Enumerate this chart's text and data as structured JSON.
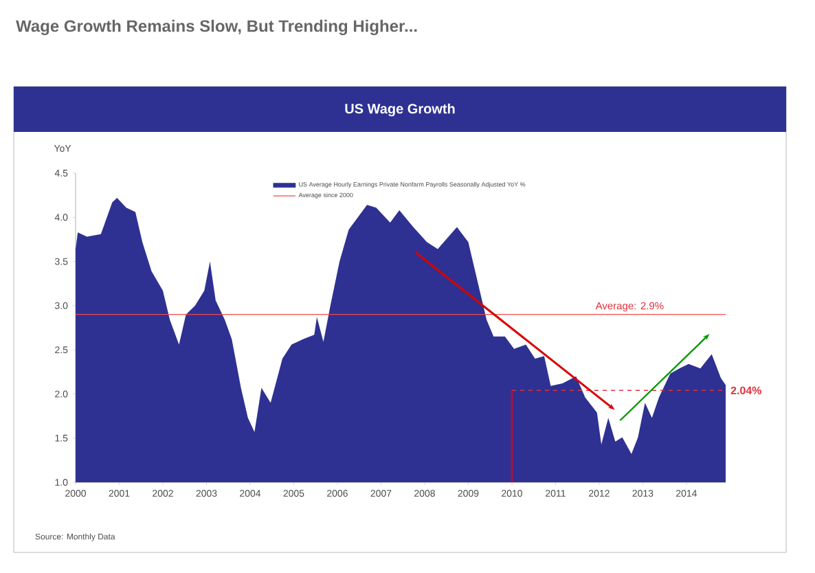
{
  "chart_data": {
    "type": "area",
    "title": "Wage Growth Remains Slow, But Trending Higher...",
    "subtitle": "US Wage Growth",
    "ylabel": "YoY",
    "series": [
      {
        "name": "US Average Hourly Earnings Private Nonfarm Payrolls Seasonally Adjusted YoY %",
        "color": "#2e3192",
        "x": [
          2000.0,
          2000.05,
          2000.26,
          2000.58,
          2000.84,
          2000.95,
          2001.16,
          2001.37,
          2001.53,
          2001.74,
          2002.0,
          2002.16,
          2002.37,
          2002.53,
          2002.74,
          2002.95,
          2003.08,
          2003.21,
          2003.42,
          2003.58,
          2003.79,
          2003.95,
          2004.1,
          2004.26,
          2004.47,
          2004.74,
          2004.95,
          2005.21,
          2005.47,
          2005.53,
          2005.68,
          2005.84,
          2006.05,
          2006.26,
          2006.47,
          2006.68,
          2006.89,
          2007.21,
          2007.42,
          2007.74,
          2008.05,
          2008.3,
          2008.74,
          2009.0,
          2009.21,
          2009.42,
          2009.58,
          2009.84,
          2010.05,
          2010.32,
          2010.53,
          2010.74,
          2010.89,
          2011.16,
          2011.47,
          2011.68,
          2011.95,
          2012.05,
          2012.21,
          2012.37,
          2012.53,
          2012.74,
          2012.89,
          2013.05,
          2013.21,
          2013.37,
          2013.63,
          2013.84,
          2014.05,
          2014.32,
          2014.58,
          2014.79,
          2014.9
        ],
        "values": [
          3.64,
          3.83,
          3.78,
          3.81,
          4.17,
          4.22,
          4.11,
          4.06,
          3.72,
          3.39,
          3.17,
          2.84,
          2.56,
          2.9,
          3.0,
          3.17,
          3.5,
          3.06,
          2.84,
          2.62,
          2.07,
          1.73,
          1.57,
          2.07,
          1.9,
          2.4,
          2.56,
          2.62,
          2.67,
          2.87,
          2.59,
          3.0,
          3.5,
          3.86,
          4.0,
          4.14,
          4.11,
          3.94,
          4.08,
          3.89,
          3.72,
          3.64,
          3.89,
          3.72,
          3.28,
          2.84,
          2.65,
          2.65,
          2.51,
          2.56,
          2.4,
          2.43,
          2.09,
          2.12,
          2.2,
          1.96,
          1.79,
          1.43,
          1.73,
          1.46,
          1.51,
          1.32,
          1.51,
          1.9,
          1.73,
          1.96,
          2.23,
          2.29,
          2.34,
          2.29,
          2.45,
          2.18,
          2.1
        ]
      },
      {
        "name": "Average since 2000",
        "type": "line",
        "color": "#f04a4a",
        "x": [
          2000.0,
          2014.9
        ],
        "values": [
          2.9,
          2.9
        ]
      }
    ],
    "xlim": [
      2000,
      2014.9
    ],
    "xticks": [
      2000,
      2001,
      2002,
      2003,
      2004,
      2005,
      2006,
      2007,
      2008,
      2009,
      2010,
      2011,
      2012,
      2013,
      2014
    ],
    "ylim": [
      1.0,
      4.5
    ],
    "yticks": [
      {
        "value": 1.0,
        "label": "1.0"
      },
      {
        "value": 1.5,
        "label": "1.5"
      },
      {
        "value": 2.0,
        "label": "2.0"
      },
      {
        "value": 2.5,
        "label": "2.5"
      },
      {
        "value": 3.0,
        "label": "3.0"
      },
      {
        "value": 3.5,
        "label": "3.5"
      },
      {
        "value": 4.0,
        "label": "4.0"
      },
      {
        "value": 4.5,
        "label": "4.5"
      }
    ],
    "ref_lines": [
      {
        "axis": "y",
        "value": 2.04,
        "label": "2.04%",
        "color": "#e0303a",
        "line_style": "dashed"
      },
      {
        "axis": "x",
        "value": 2010,
        "color": "#b0103a"
      }
    ],
    "annotations": [
      {
        "text": "Average: 2.9%",
        "x": 2012.7,
        "y": 2.9
      },
      "Source: Monthly Data"
    ],
    "legend": "top",
    "grid": false
  }
}
